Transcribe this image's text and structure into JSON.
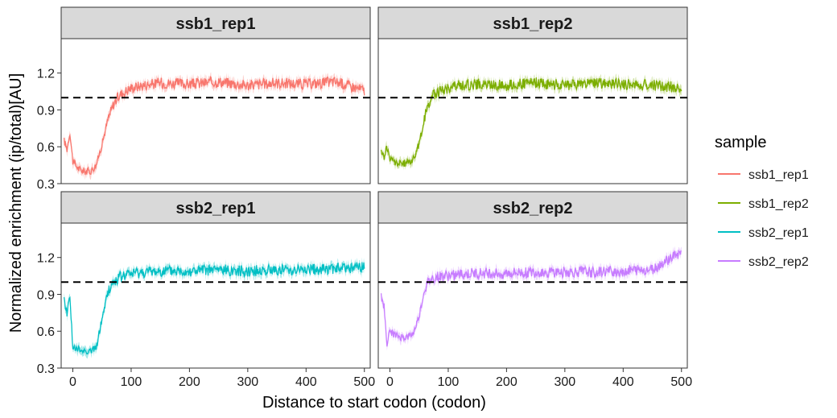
{
  "chart_data": {
    "type": "line",
    "xlabel": "Distance to start codon (codon)",
    "ylabel": "Normalized enrichment (ip/total)[AU]",
    "xlim": [
      -20,
      510
    ],
    "ylim": [
      0.3,
      1.48
    ],
    "xticks": [
      0,
      100,
      200,
      300,
      400,
      500
    ],
    "yticks": [
      0.3,
      0.6,
      0.9,
      1.2
    ],
    "reference_line": {
      "y": 1.0,
      "style": "dashed"
    },
    "grid": false,
    "legend": {
      "title": "sample",
      "position": "right"
    },
    "panels": [
      {
        "title": "ssb1_rep1",
        "series": "ssb1_rep1",
        "color": "#F8766D",
        "x": [
          -15,
          -10,
          -5,
          0,
          10,
          20,
          30,
          40,
          50,
          60,
          70,
          80,
          100,
          120,
          150,
          200,
          250,
          300,
          350,
          400,
          450,
          500
        ],
        "y": [
          0.65,
          0.58,
          0.72,
          0.48,
          0.42,
          0.4,
          0.4,
          0.45,
          0.62,
          0.82,
          0.95,
          1.02,
          1.08,
          1.1,
          1.12,
          1.11,
          1.13,
          1.1,
          1.12,
          1.11,
          1.13,
          1.06
        ]
      },
      {
        "title": "ssb1_rep2",
        "series": "ssb1_rep2",
        "color": "#7CAE00",
        "x": [
          -15,
          -10,
          -5,
          0,
          10,
          20,
          30,
          40,
          50,
          60,
          70,
          80,
          100,
          120,
          150,
          200,
          250,
          300,
          350,
          400,
          450,
          500
        ],
        "y": [
          0.55,
          0.52,
          0.6,
          0.5,
          0.47,
          0.46,
          0.47,
          0.5,
          0.62,
          0.85,
          1.0,
          1.04,
          1.08,
          1.1,
          1.11,
          1.1,
          1.12,
          1.1,
          1.12,
          1.11,
          1.1,
          1.08
        ]
      },
      {
        "title": "ssb2_rep1",
        "series": "ssb2_rep1",
        "color": "#00BFC4",
        "x": [
          -15,
          -10,
          -5,
          0,
          10,
          20,
          30,
          40,
          50,
          60,
          70,
          80,
          100,
          120,
          150,
          200,
          250,
          300,
          350,
          400,
          450,
          500
        ],
        "y": [
          0.85,
          0.75,
          0.9,
          0.46,
          0.45,
          0.44,
          0.44,
          0.46,
          0.7,
          0.92,
          1.0,
          1.04,
          1.07,
          1.08,
          1.09,
          1.09,
          1.1,
          1.09,
          1.1,
          1.1,
          1.11,
          1.12
        ]
      },
      {
        "title": "ssb2_rep2",
        "series": "ssb2_rep2",
        "color": "#C77CFF",
        "x": [
          -15,
          -10,
          -5,
          0,
          10,
          20,
          30,
          40,
          50,
          60,
          70,
          80,
          100,
          120,
          150,
          200,
          250,
          300,
          350,
          400,
          450,
          500
        ],
        "y": [
          0.88,
          0.8,
          0.5,
          0.6,
          0.56,
          0.55,
          0.55,
          0.58,
          0.72,
          0.95,
          1.02,
          1.04,
          1.05,
          1.06,
          1.07,
          1.07,
          1.08,
          1.08,
          1.08,
          1.09,
          1.1,
          1.25
        ]
      }
    ]
  }
}
